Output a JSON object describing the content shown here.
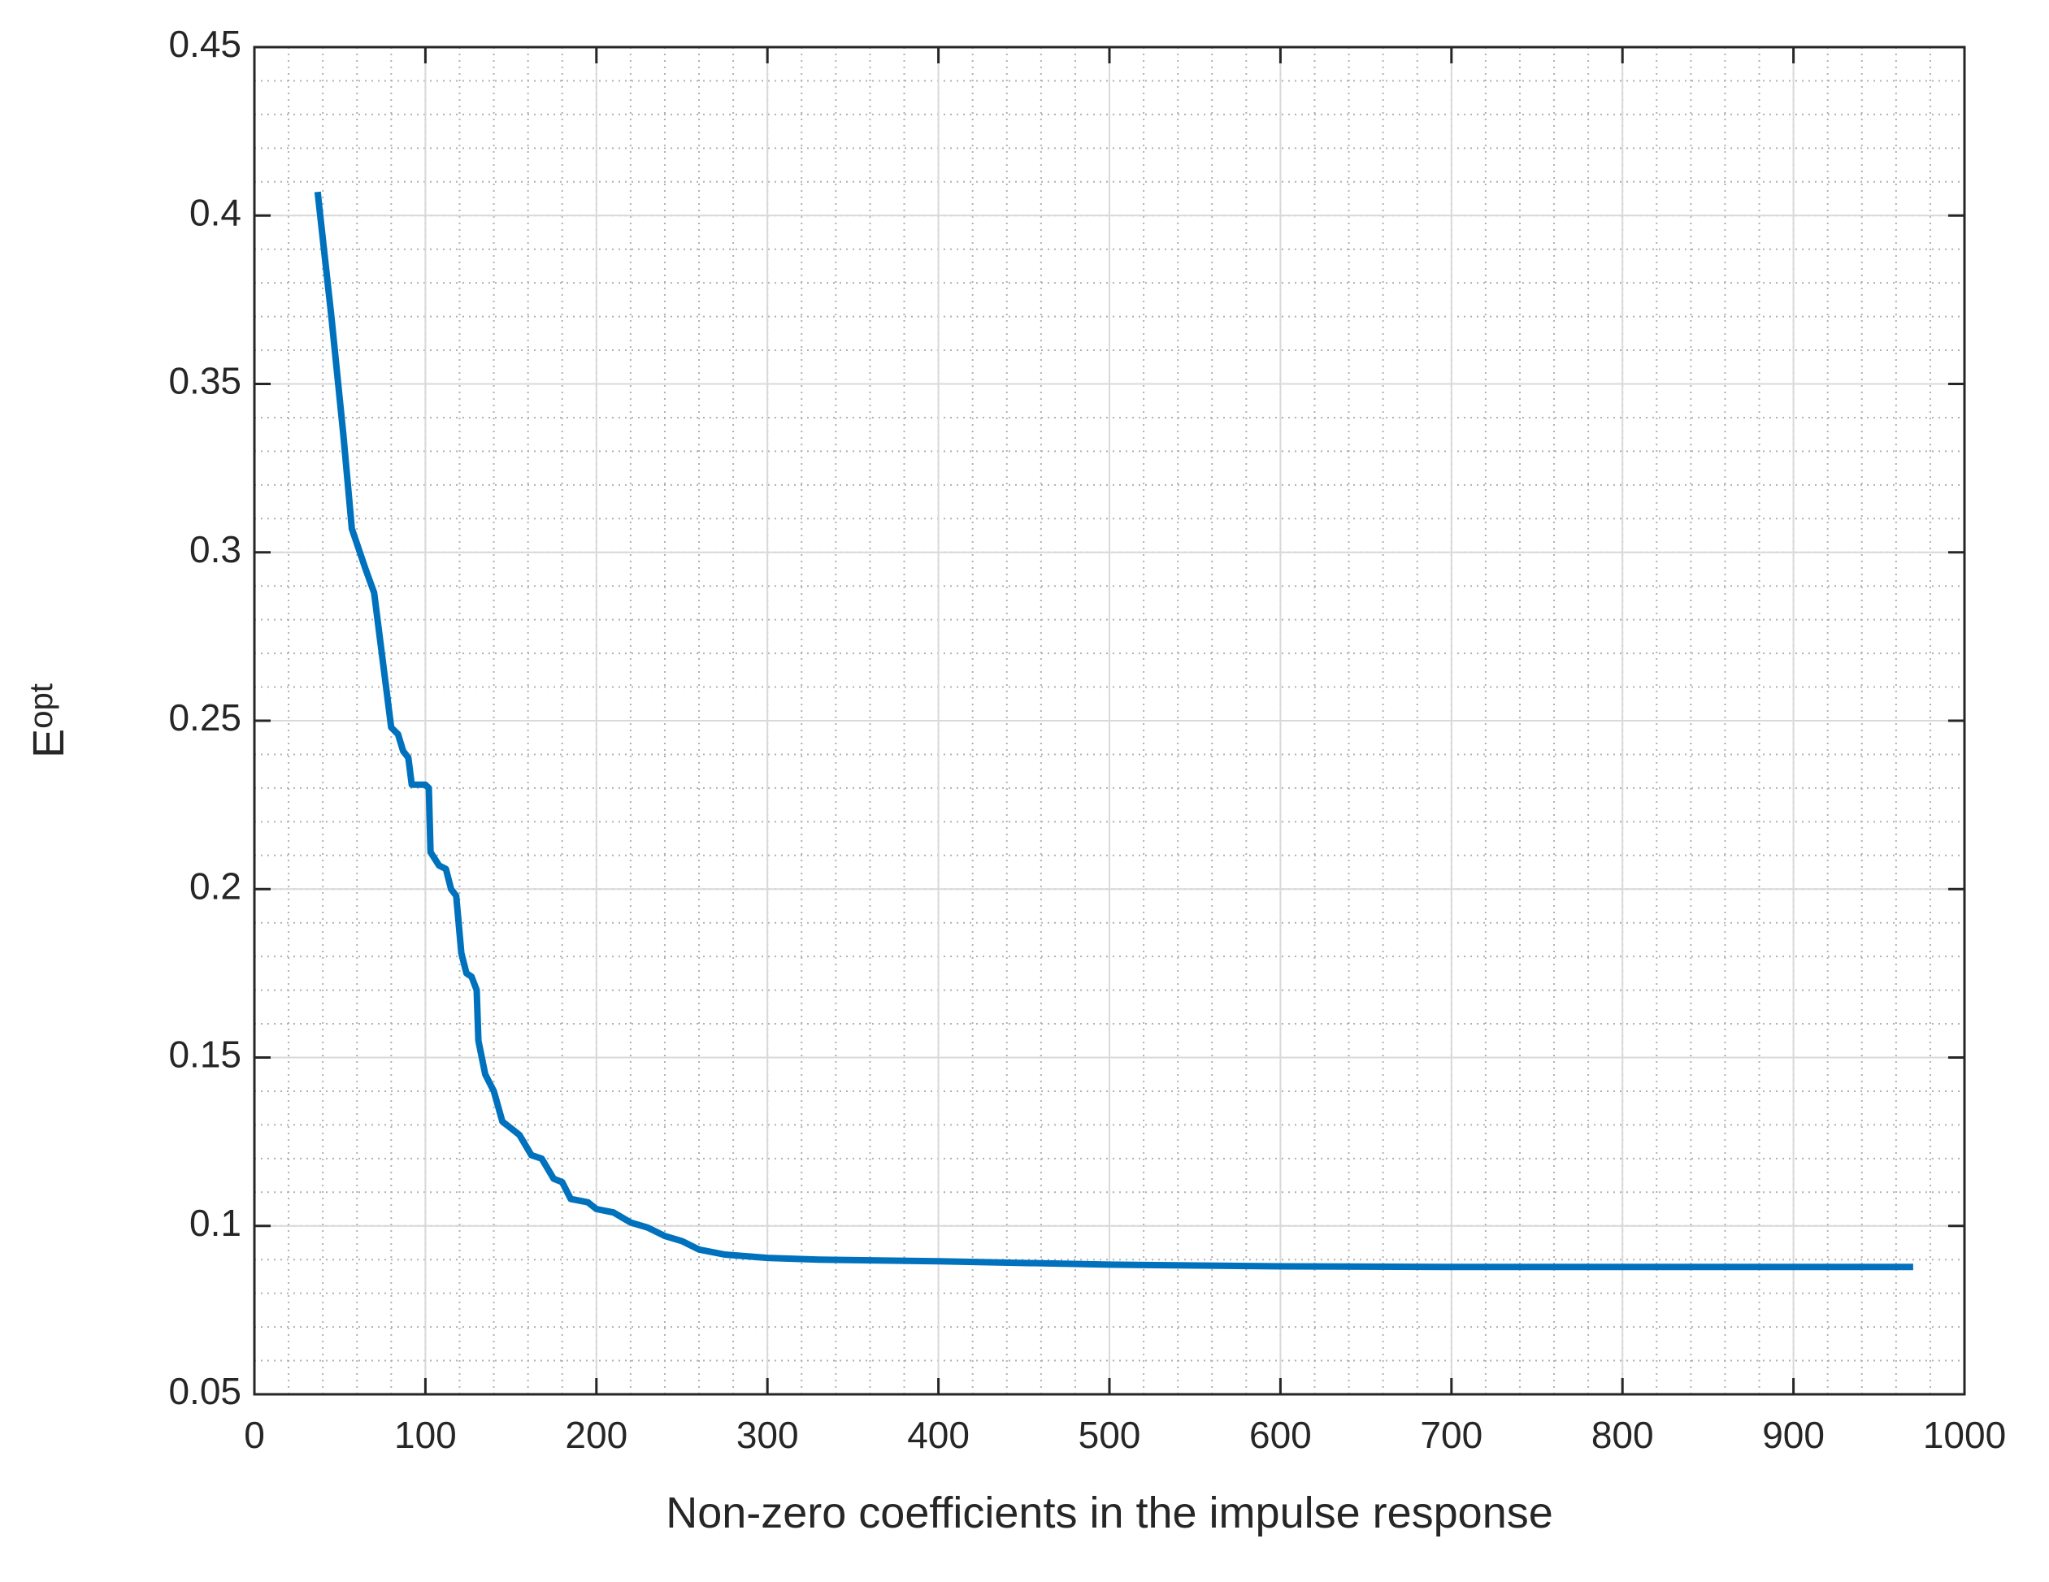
{
  "chart_data": {
    "type": "line",
    "x_label": "Non-zero coefficients in the impulse response",
    "y_label": "E",
    "y_label_subscript": "opt",
    "xlim": [
      0,
      1000
    ],
    "xticks": [
      0,
      100,
      200,
      300,
      400,
      500,
      600,
      700,
      800,
      900,
      1000
    ],
    "ylim": [
      0.05,
      0.45
    ],
    "yticks": [
      0.05,
      0.1,
      0.15,
      0.2,
      0.25,
      0.3,
      0.35,
      0.4,
      0.45
    ],
    "grid": true,
    "minor_grid": true,
    "series": [
      {
        "color": "#0072bd",
        "x": [
          37,
          45,
          52,
          57,
          65,
          70,
          75,
          80,
          84,
          87,
          90,
          92,
          100,
          102,
          103,
          108,
          112,
          115,
          118,
          121,
          124,
          127,
          130,
          131,
          135,
          140,
          145,
          150,
          155,
          162,
          168,
          175,
          180,
          185,
          195,
          200,
          210,
          220,
          230,
          240,
          250,
          260,
          275,
          300,
          330,
          400,
          500,
          600,
          700,
          970
        ],
        "values": [
          0.407,
          0.37,
          0.335,
          0.307,
          0.295,
          0.288,
          0.268,
          0.248,
          0.246,
          0.241,
          0.239,
          0.231,
          0.231,
          0.23,
          0.211,
          0.207,
          0.206,
          0.2,
          0.198,
          0.181,
          0.175,
          0.174,
          0.17,
          0.155,
          0.145,
          0.14,
          0.131,
          0.129,
          0.127,
          0.121,
          0.12,
          0.114,
          0.113,
          0.108,
          0.107,
          0.105,
          0.104,
          0.101,
          0.0995,
          0.097,
          0.0955,
          0.093,
          0.0915,
          0.0905,
          0.09,
          0.0895,
          0.0885,
          0.088,
          0.0878,
          0.0878
        ]
      }
    ]
  }
}
